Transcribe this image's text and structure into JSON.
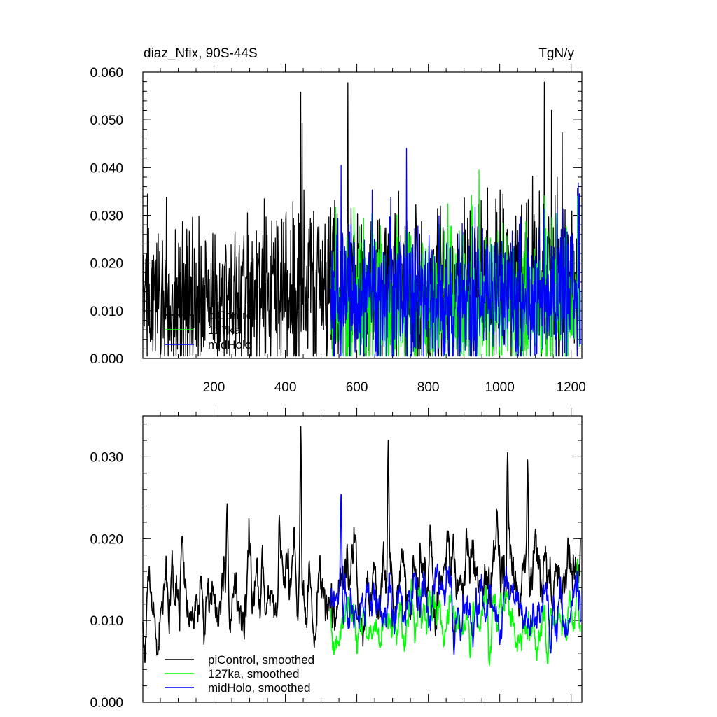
{
  "chart_data": [
    {
      "type": "line",
      "title_left": "diaz_Nfix, 90S-44S",
      "title_right": "TgN/y",
      "xlim": [
        1,
        1230
      ],
      "ylim": [
        0,
        0.06
      ],
      "x_ticks": [
        200,
        400,
        600,
        800,
        1000,
        1200
      ],
      "x_tick_labels": [
        "200",
        "400",
        "600",
        "800",
        "1000",
        "1200"
      ],
      "y_ticks": [
        0,
        0.01,
        0.02,
        0.03,
        0.04,
        0.05,
        0.06
      ],
      "y_tick_labels": [
        "0.000",
        "0.010",
        "0.020",
        "0.030",
        "0.040",
        "0.050",
        "0.060"
      ],
      "legend_position": "lower-left",
      "series": [
        {
          "name": "piControl",
          "color": "#000000",
          "x_range": [
            1,
            1226
          ],
          "mean": 0.0145,
          "sd": 0.0085,
          "trend": 0.006,
          "spikes": [
            [
              443,
              0.0558
            ],
            [
              447,
              0.0493
            ],
            [
              575,
              0.0578
            ],
            [
              1125,
              0.0579
            ],
            [
              1145,
              0.052
            ],
            [
              1175,
              0.0473
            ]
          ]
        },
        {
          "name": "127ka",
          "color": "#00ff00",
          "x_range": [
            527,
            1226
          ],
          "mean": 0.0115,
          "sd": 0.0075,
          "trend": 0.0,
          "spikes": [
            [
              942,
              0.0395
            ],
            [
              1218,
              0.034
            ]
          ]
        },
        {
          "name": "midHolo",
          "color": "#0000ff",
          "x_range": [
            527,
            1226
          ],
          "mean": 0.0125,
          "sd": 0.0075,
          "trend": 0.0,
          "spikes": [
            [
              556,
              0.0405
            ],
            [
              1220,
              0.0368
            ],
            [
              1223,
              0.0345
            ]
          ]
        }
      ]
    },
    {
      "type": "line",
      "xlim": [
        1,
        1230
      ],
      "ylim": [
        0,
        0.035
      ],
      "y_ticks": [
        0,
        0.01,
        0.02,
        0.03
      ],
      "y_tick_labels": [
        "0.000",
        "0.010",
        "0.020",
        "0.030"
      ],
      "legend_position": "lower-left",
      "series": [
        {
          "name": "piControl, smoothed",
          "color": "#000000",
          "x_range": [
            1,
            1226
          ],
          "mean": 0.014,
          "sd": 0.0032,
          "trend": 0.005,
          "peaks": [
            [
              111,
              0.0203
            ],
            [
              237,
              0.0242
            ],
            [
              383,
              0.0228
            ],
            [
              443,
              0.0337
            ],
            [
              688,
              0.032
            ],
            [
              1078,
              0.0296
            ],
            [
              1022,
              0.0305
            ]
          ]
        },
        {
          "name": "127ka, smoothed",
          "color": "#00ff00",
          "x_range": [
            527,
            1226
          ],
          "mean": 0.0098,
          "sd": 0.0022,
          "trend": 0.0,
          "peaks": [
            [
              1218,
              0.0175
            ]
          ]
        },
        {
          "name": "midHolo, smoothed",
          "color": "#0000ff",
          "x_range": [
            527,
            1226
          ],
          "mean": 0.0118,
          "sd": 0.0025,
          "trend": 0.0,
          "peaks": [
            [
              556,
              0.0254
            ]
          ]
        }
      ]
    }
  ]
}
